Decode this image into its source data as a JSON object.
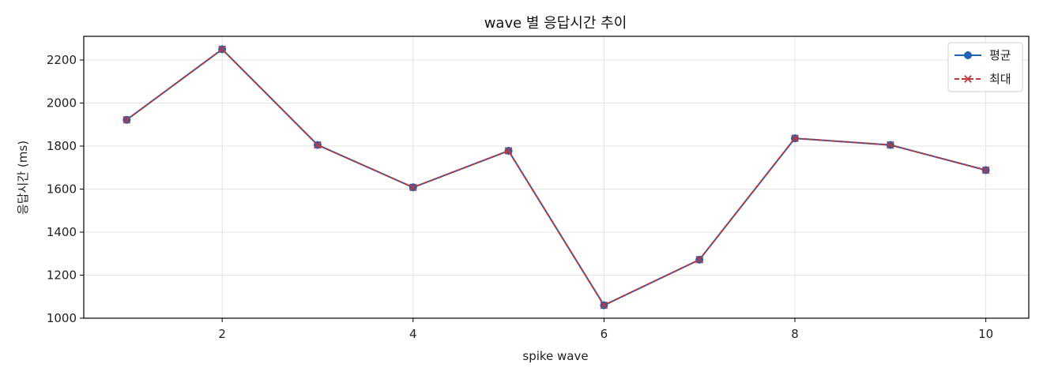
{
  "chart_data": {
    "type": "line",
    "title": "wave 별 응답시간 추이",
    "xlabel": "spike wave",
    "ylabel": "응답시간 (ms)",
    "x": [
      1,
      2,
      3,
      4,
      5,
      6,
      7,
      8,
      9,
      10
    ],
    "xlim": [
      0.55,
      10.45
    ],
    "ylim": [
      1000,
      2310
    ],
    "xticks": [
      2,
      4,
      6,
      8,
      10
    ],
    "yticks": [
      1000,
      1200,
      1400,
      1600,
      1800,
      2000,
      2200
    ],
    "grid": true,
    "legend_position": "top-right",
    "series": [
      {
        "name": "평균",
        "color": "#1f63b4",
        "line_style": "solid",
        "marker": "circle",
        "values": [
          1922,
          2250,
          1805,
          1608,
          1778,
          1060,
          1272,
          1836,
          1805,
          1688
        ]
      },
      {
        "name": "최대",
        "color": "#c0363a",
        "line_style": "dashed",
        "marker": "x",
        "values": [
          1922,
          2250,
          1805,
          1608,
          1778,
          1060,
          1272,
          1836,
          1805,
          1688
        ]
      }
    ]
  }
}
